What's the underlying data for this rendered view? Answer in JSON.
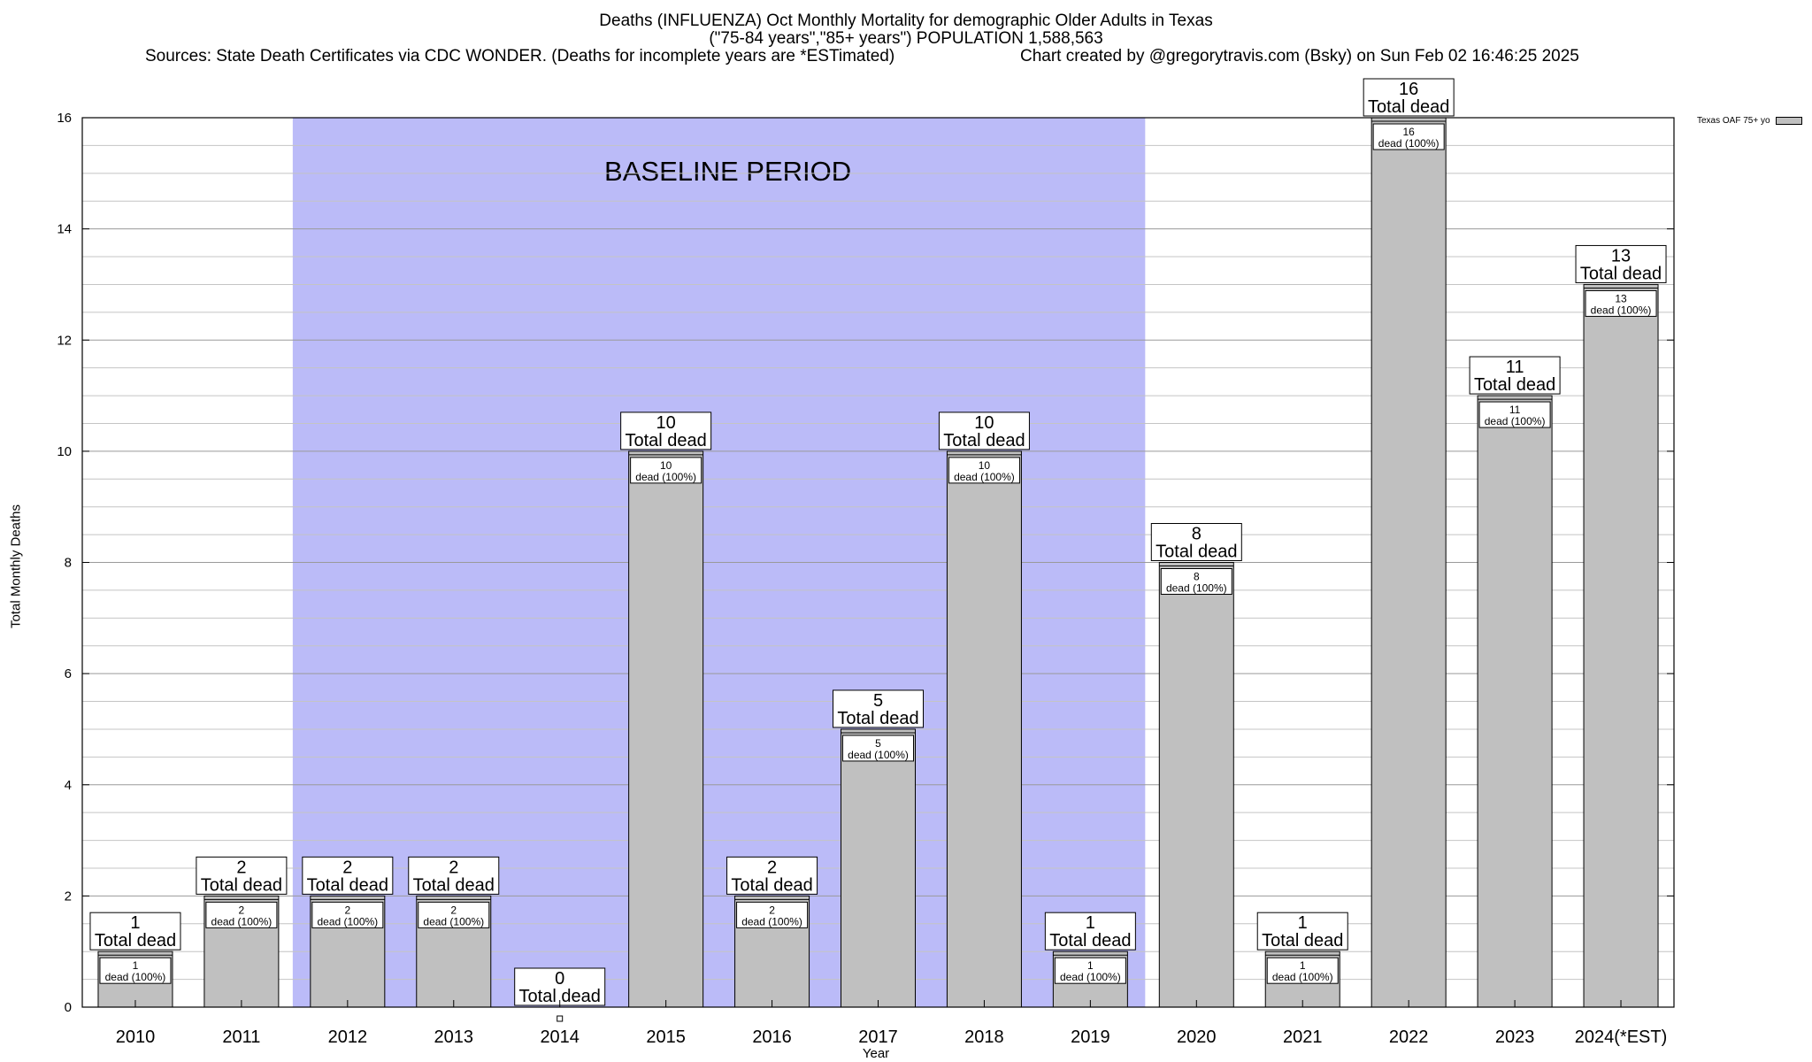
{
  "chart_data": {
    "type": "bar",
    "title": "Deaths (INFLUENZA) Oct Monthly Mortality for demographic Older Adults in Texas",
    "subtitle": "(\"75-84 years\",\"85+ years\") POPULATION 1,588,563",
    "sources": "Sources: State Death Certificates via CDC WONDER. (Deaths for incomplete years are *ESTimated)",
    "credit": "Chart created by @gregorytravis.com (Bsky) on Sun Feb 02 16:46:25 2025",
    "xlabel": "Year",
    "ylabel": "Total Monthly Deaths",
    "ylim": [
      0,
      16
    ],
    "yticks": [
      0,
      2,
      4,
      6,
      8,
      10,
      12,
      14,
      16
    ],
    "categories": [
      "2010",
      "2011",
      "2012",
      "2013",
      "2014",
      "2015",
      "2016",
      "2017",
      "2018",
      "2019",
      "2020",
      "2021",
      "2022",
      "2023",
      "2024(*EST)"
    ],
    "values": [
      1,
      2,
      2,
      2,
      0,
      10,
      2,
      5,
      10,
      1,
      8,
      1,
      16,
      11,
      13
    ],
    "series_name": "Texas OAF 75+ yo",
    "total_label_suffix": "Total dead",
    "inner_label_suffix": "dead (100%)",
    "baseline": {
      "label": "BASELINE PERIOD",
      "start": "2012",
      "end": "2019",
      "color": "#bbbbf8"
    },
    "bar_color": "#c0c0c0"
  }
}
